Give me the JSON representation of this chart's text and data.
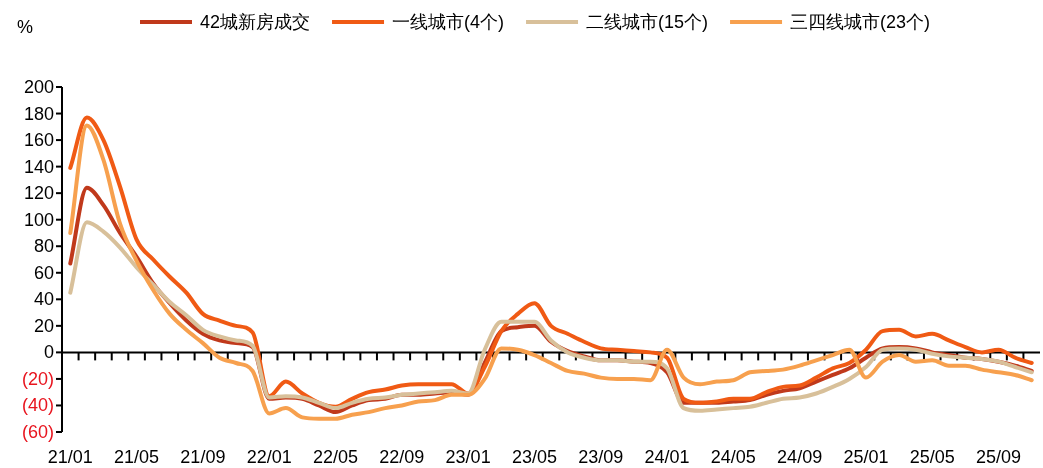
{
  "chart_data": {
    "type": "line",
    "ylabel": "%",
    "legend": "top",
    "marker": "none",
    "line_style": "solid",
    "categories": [
      "21/01",
      null,
      null,
      null,
      "21/05",
      null,
      null,
      null,
      "21/09",
      null,
      null,
      null,
      "22/01",
      null,
      null,
      null,
      "22/05",
      null,
      null,
      null,
      "22/09",
      null,
      null,
      null,
      "23/01",
      null,
      null,
      null,
      "23/05",
      null,
      null,
      null,
      "23/09",
      null,
      null,
      null,
      "24/01",
      null,
      null,
      null,
      "24/05",
      null,
      null,
      null,
      "24/09",
      null,
      null,
      null,
      "25/01",
      null,
      null,
      null,
      "25/05",
      null,
      null,
      null,
      "25/09",
      null,
      null
    ],
    "ylim": [
      -60,
      200
    ],
    "yticks": [
      {
        "value": -60,
        "label": "(60)"
      },
      {
        "value": -40,
        "label": "(40)"
      },
      {
        "value": -20,
        "label": "(20)"
      },
      0,
      20,
      40,
      60,
      80,
      100,
      120,
      140,
      160,
      180,
      200
    ],
    "series": [
      {
        "name": "42城新房成交",
        "color": "#c0391b",
        "values": [
          67,
          124,
          111,
          90,
          72,
          52,
          37,
          24,
          14,
          9,
          7,
          4,
          -35,
          -34,
          -35,
          -40,
          -45,
          -40,
          -36,
          -35,
          -32,
          -32,
          -31,
          -30,
          -32,
          -8,
          16,
          19,
          20,
          8,
          1,
          -3,
          -6,
          -6,
          -7,
          -8,
          -15,
          -38,
          -38,
          -38,
          -37,
          -36,
          -32,
          -29,
          -27,
          -22,
          -17,
          -12,
          -4,
          3,
          4,
          3,
          0,
          -2,
          -4,
          -5,
          -7,
          -10,
          -14
        ]
      },
      {
        "name": "一线城市(4个)",
        "color": "#f05a14",
        "values": [
          139,
          177,
          160,
          125,
          85,
          70,
          57,
          45,
          29,
          24,
          20,
          15,
          -33,
          -22,
          -31,
          -38,
          -41,
          -35,
          -30,
          -28,
          -25,
          -24,
          -24,
          -24,
          -31,
          -11,
          16,
          29,
          37,
          20,
          14,
          8,
          3,
          2,
          1,
          0,
          -4,
          -35,
          -38,
          -37,
          -35,
          -35,
          -30,
          -26,
          -25,
          -19,
          -12,
          -8,
          2,
          16,
          17,
          12,
          14,
          9,
          4,
          0,
          2,
          -4,
          -8
        ]
      },
      {
        "name": "二线城市(15个)",
        "color": "#d8c09a",
        "values": [
          45,
          98,
          91,
          79,
          64,
          51,
          38,
          28,
          17,
          12,
          9,
          5,
          -34,
          -33,
          -34,
          -38,
          -42,
          -38,
          -35,
          -34,
          -32,
          -31,
          -30,
          -29,
          -31,
          2,
          23,
          23,
          23,
          9,
          0,
          -4,
          -6,
          -6,
          -7,
          -7,
          -12,
          -42,
          -44,
          -43,
          -42,
          -41,
          -38,
          -35,
          -34,
          -31,
          -26,
          -20,
          -11,
          2,
          3,
          2,
          -1,
          -3,
          -4,
          -5,
          -7,
          -11,
          -15
        ]
      },
      {
        "name": "三四线城市(23个)",
        "color": "#f7a04e",
        "values": [
          90,
          171,
          145,
          97,
          69,
          47,
          29,
          17,
          7,
          -4,
          -8,
          -14,
          -46,
          -42,
          -49,
          -50,
          -50,
          -47,
          -45,
          -42,
          -40,
          -37,
          -36,
          -32,
          -32,
          -20,
          3,
          2,
          -2,
          -8,
          -14,
          -16,
          -19,
          -20,
          -20,
          -21,
          2,
          -19,
          -24,
          -22,
          -21,
          -15,
          -14,
          -13,
          -10,
          -6,
          -2,
          2,
          -19,
          -7,
          -2,
          -7,
          -6,
          -10,
          -10,
          -13,
          -15,
          -17,
          -21
        ]
      }
    ]
  }
}
